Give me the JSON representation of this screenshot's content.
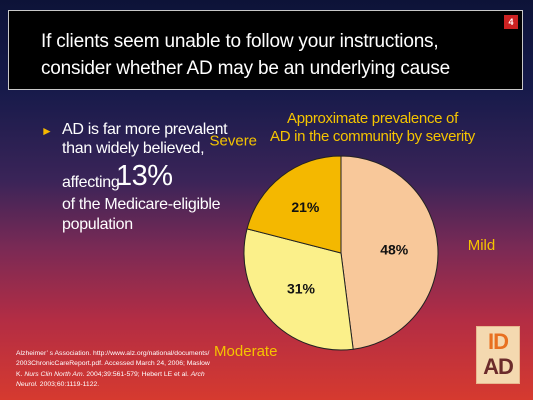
{
  "slide": {
    "number": "4",
    "title_line1": "If clients seem unable to follow your instructions,",
    "title_line2": "consider whether AD may be an underlying cause"
  },
  "bullet": {
    "marker": "►",
    "line1": "AD is far more prevalent",
    "line2": "than widely believed,",
    "line3": "affecting",
    "highlight": "13%",
    "line4": "of the Medicare-eligible",
    "line5": "population"
  },
  "chart_data": {
    "type": "pie",
    "title_line1": "Approximate prevalence of",
    "title_line2": "AD in the community by severity",
    "slices": [
      {
        "name": "Mild",
        "value": 48,
        "label": "48%",
        "color": "#f8c89a"
      },
      {
        "name": "Moderate",
        "value": 31,
        "label": "31%",
        "color": "#fbf08a"
      },
      {
        "name": "Severe",
        "value": 21,
        "label": "21%",
        "color": "#f4b800"
      }
    ],
    "category_label_color": "#f5c400"
  },
  "source": {
    "line1": "Alzheimer’ s Association. http://www.alz.org/national/documents/",
    "line2": "2003ChronicCareReport.pdf. Accessed March 24, 2006; Maslow",
    "line3_pre": "K. ",
    "line3_italic": "Nurs Clin North Am.",
    "line3_post": " 2004;39:561-579; Hebert LE et al. ",
    "line3_italic2": "Arch",
    "line4_italic": "Neurol.",
    "line4_post": " 2003;60:1119-1122."
  },
  "logo": {
    "top": "ID",
    "bottom": "AD"
  }
}
